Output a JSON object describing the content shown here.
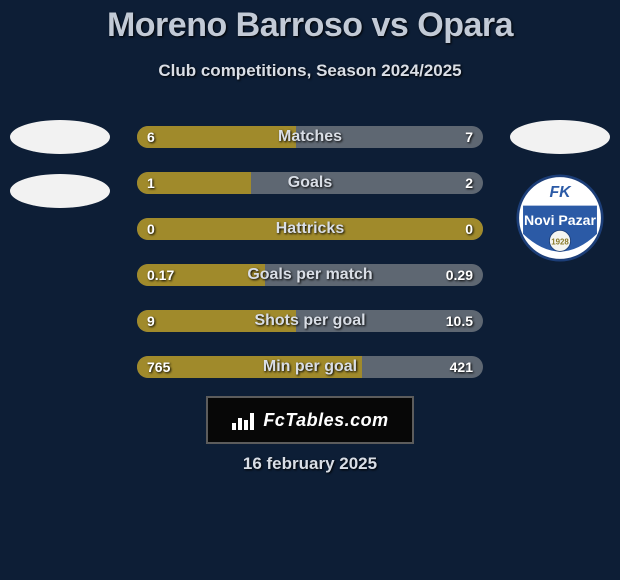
{
  "title": "Moreno Barroso vs Opara",
  "subtitle": "Club competitions, Season 2024/2025",
  "date": "16 february 2025",
  "fctables_label": "FcTables.com",
  "colors": {
    "bg": "#0d1e36",
    "title": "#c2cad6",
    "subtitle": "#d9dee6",
    "textshadow": "1px 1px 2px #000000",
    "row_bg": "#5e6772",
    "bar_left": "#a08a2b",
    "row_label": "#d9dee6",
    "val": "#ffffff",
    "box_border": "#5c5c5c"
  },
  "rows": [
    {
      "label": "Matches",
      "left_val": "6",
      "right_val": "7",
      "left_width_pct": 46
    },
    {
      "label": "Goals",
      "left_val": "1",
      "right_val": "2",
      "left_width_pct": 33
    },
    {
      "label": "Hattricks",
      "left_val": "0",
      "right_val": "0",
      "left_width_pct": 100
    },
    {
      "label": "Goals per match",
      "left_val": "0.17",
      "right_val": "0.29",
      "left_width_pct": 37
    },
    {
      "label": "Shots per goal",
      "left_val": "9",
      "right_val": "10.5",
      "left_width_pct": 46
    },
    {
      "label": "Min per goal",
      "left_val": "765",
      "right_val": "421",
      "left_width_pct": 65
    }
  ],
  "left_logos": {
    "ellipse_count": 2
  },
  "right_logos": {
    "ellipse_count": 1,
    "shield": {
      "top_text": "FK",
      "bottom_text": "Novi Pazar",
      "year": "1928",
      "bg": "#ffffff",
      "blue": "#2b5aa6",
      "stroke": "#1c3e78"
    }
  }
}
